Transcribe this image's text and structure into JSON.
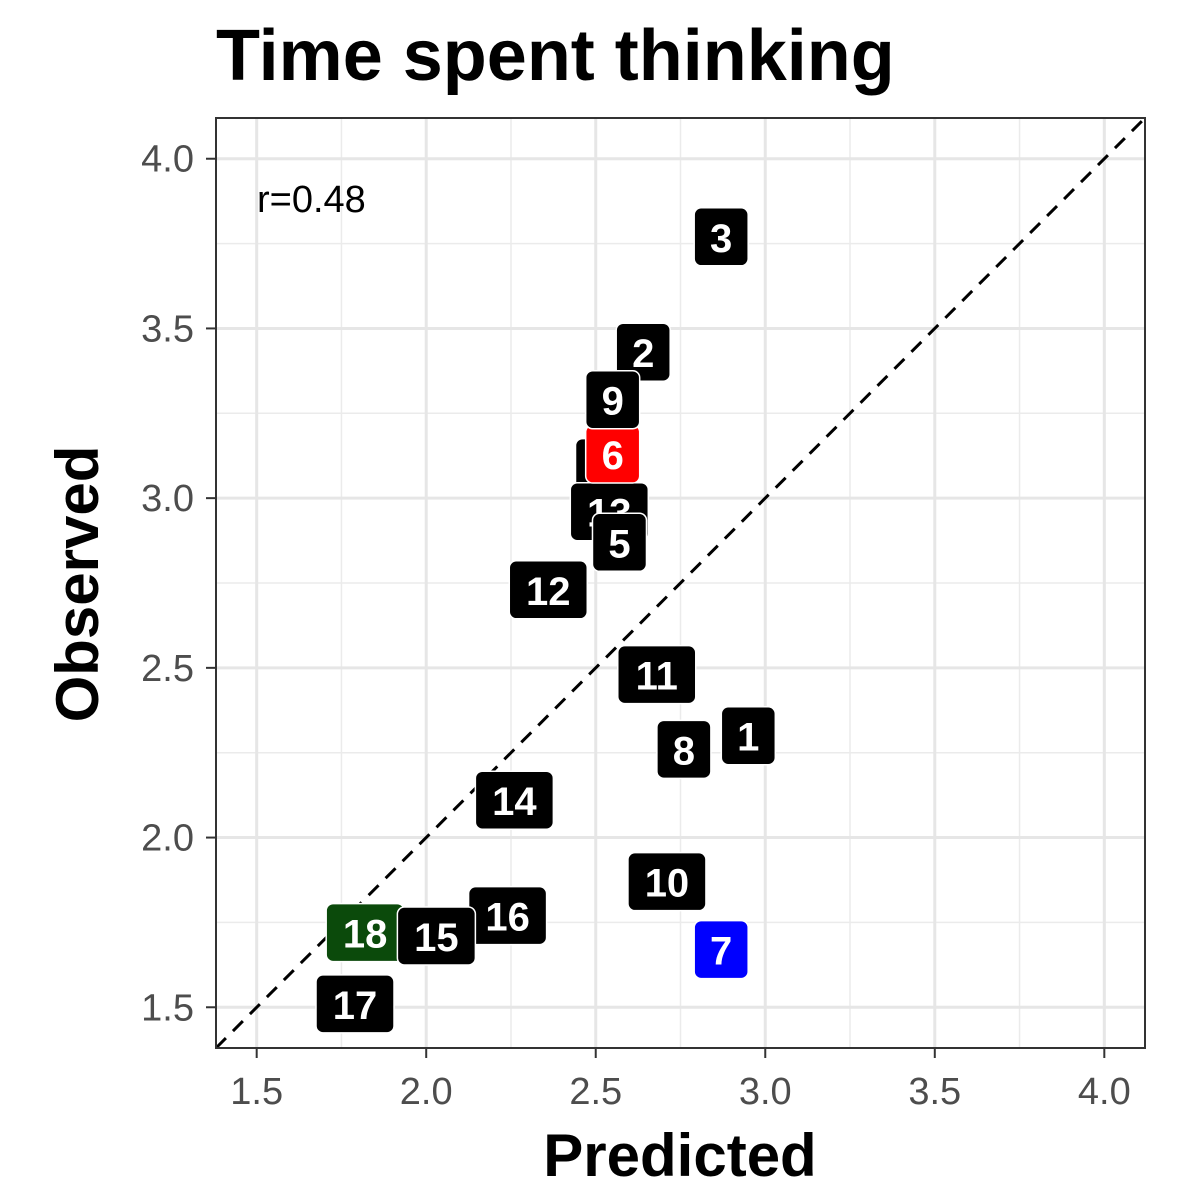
{
  "chart_data": {
    "type": "scatter",
    "title": "Time spent thinking",
    "xlabel": "Predicted",
    "ylabel": "Observed",
    "xlim": [
      1.38,
      4.12
    ],
    "ylim": [
      1.38,
      4.12
    ],
    "xticks": [
      1.5,
      2.0,
      2.5,
      3.0,
      3.5,
      4.0
    ],
    "yticks": [
      1.5,
      2.0,
      2.5,
      3.0,
      3.5,
      4.0
    ],
    "xtick_labels": [
      "1.5",
      "2.0",
      "2.5",
      "3.0",
      "3.5",
      "4.0"
    ],
    "ytick_labels": [
      "1.5",
      "2.0",
      "2.5",
      "3.0",
      "3.5",
      "4.0"
    ],
    "grid": true,
    "reference_line": "y = x",
    "annotation": "r=0.48",
    "points": [
      {
        "label": "1",
        "x": 2.95,
        "y": 2.3,
        "color": "#000000"
      },
      {
        "label": "2",
        "x": 2.64,
        "y": 3.43,
        "color": "#000000"
      },
      {
        "label": "3",
        "x": 2.87,
        "y": 3.77,
        "color": "#000000"
      },
      {
        "label": "4",
        "x": 2.52,
        "y": 3.09,
        "color": "#000000"
      },
      {
        "label": "13",
        "x": 2.54,
        "y": 2.96,
        "color": "#000000"
      },
      {
        "label": "5",
        "x": 2.57,
        "y": 2.87,
        "color": "#000000"
      },
      {
        "label": "6",
        "x": 2.55,
        "y": 3.13,
        "color": "#ff0000"
      },
      {
        "label": "7",
        "x": 2.87,
        "y": 1.67,
        "color": "#0000ff"
      },
      {
        "label": "8",
        "x": 2.76,
        "y": 2.26,
        "color": "#000000"
      },
      {
        "label": "9",
        "x": 2.55,
        "y": 3.29,
        "color": "#000000"
      },
      {
        "label": "10",
        "x": 2.71,
        "y": 1.87,
        "color": "#000000"
      },
      {
        "label": "11",
        "x": 2.68,
        "y": 2.48,
        "color": "#000000"
      },
      {
        "label": "12",
        "x": 2.36,
        "y": 2.73,
        "color": "#000000"
      },
      {
        "label": "14",
        "x": 2.26,
        "y": 2.11,
        "color": "#000000"
      },
      {
        "label": "16",
        "x": 2.24,
        "y": 1.77,
        "color": "#000000"
      },
      {
        "label": "18",
        "x": 1.82,
        "y": 1.72,
        "color": "#0b4a0b"
      },
      {
        "label": "15",
        "x": 2.03,
        "y": 1.71,
        "color": "#000000"
      },
      {
        "label": "17",
        "x": 1.79,
        "y": 1.51,
        "color": "#000000"
      }
    ]
  }
}
